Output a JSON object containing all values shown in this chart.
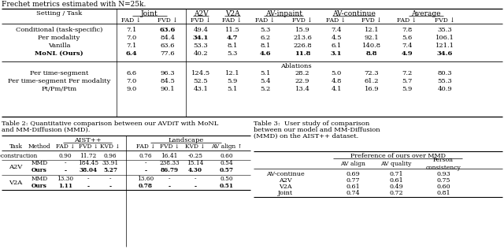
{
  "top_caption": "Frechet metrics estimated with N=25k.",
  "table1": {
    "rows": [
      [
        "Conditional (task-specific)",
        "7.1",
        "63.6",
        "49.4",
        "11.5",
        "5.3",
        "15.9",
        "7.4",
        "12.1",
        "7.8",
        "35.3"
      ],
      [
        "Per modality",
        "7.0",
        "84.4",
        "34.1",
        "4.7",
        "6.2",
        "213.6",
        "4.5",
        "92.1",
        "5.6",
        "106.1"
      ],
      [
        "Vanilla",
        "7.1",
        "63.6",
        "53.3",
        "8.1",
        "8.1",
        "226.8",
        "6.1",
        "140.8",
        "7.4",
        "121.1"
      ],
      [
        "MoNL (Ours)",
        "6.4",
        "77.6",
        "40.2",
        "5.3",
        "4.6",
        "11.8",
        "3.1",
        "8.8",
        "4.9",
        "34.6"
      ]
    ],
    "ablation_rows": [
      [
        "Per time-segment",
        "6.6",
        "96.3",
        "124.5",
        "12.1",
        "5.1",
        "28.2",
        "5.0",
        "72.3",
        "7.2",
        "80.3"
      ],
      [
        "Per time-segment Per modality",
        "7.0",
        "84.5",
        "52.5",
        "5.9",
        "5.4",
        "22.9",
        "4.8",
        "61.2",
        "5.7",
        "55.3"
      ],
      [
        "Pt/Pm/Ptm",
        "9.0",
        "90.1",
        "43.1",
        "5.1",
        "5.2",
        "13.4",
        "4.1",
        "16.9",
        "5.9",
        "40.9"
      ]
    ],
    "bold_row0": [
      1
    ],
    "bold_row1": [
      2,
      3
    ],
    "bold_row3": [
      0,
      4,
      5,
      6,
      7,
      8,
      9
    ]
  },
  "table2_caption_line1": "Table 2: Quantitative comparison between our AVDiT with MoNL",
  "table2_caption_line2": "and MM-Diffusion (MMD).",
  "table2": {
    "rows": [
      [
        "Reconstruction",
        "",
        "0.90",
        "11.72",
        "0.96",
        "0.76",
        "16.41",
        "-0.25",
        "0.60"
      ],
      [
        "A2V",
        "MMD",
        "-",
        "184.45",
        "33.91",
        "-",
        "238.33",
        "15.14",
        "0.54"
      ],
      [
        "",
        "Ours",
        "-",
        "38.04",
        "5.27",
        "-",
        "86.79",
        "4.30",
        "0.57"
      ],
      [
        "V2A",
        "MMD",
        "13.30",
        "-",
        "-",
        "13.60",
        "-",
        "-",
        "0.50"
      ],
      [
        "",
        "Ours",
        "1.11",
        "-",
        "-",
        "0.78",
        "-",
        "-",
        "0.51"
      ]
    ]
  },
  "table3_caption_line1": "Table 3:  User study of comparison",
  "table3_caption_line2": "between our model and MM-Diffusion",
  "table3_caption_line3": "(MMD) on the AIST++ dataset.",
  "table3": {
    "rows": [
      [
        "AV-continue",
        "0.69",
        "0.71",
        "0.93"
      ],
      [
        "A2V",
        "0.77",
        "0.61",
        "0.75"
      ],
      [
        "V2A",
        "0.61",
        "0.49",
        "0.60"
      ],
      [
        "Joint",
        "0.74",
        "0.72",
        "0.81"
      ]
    ]
  }
}
